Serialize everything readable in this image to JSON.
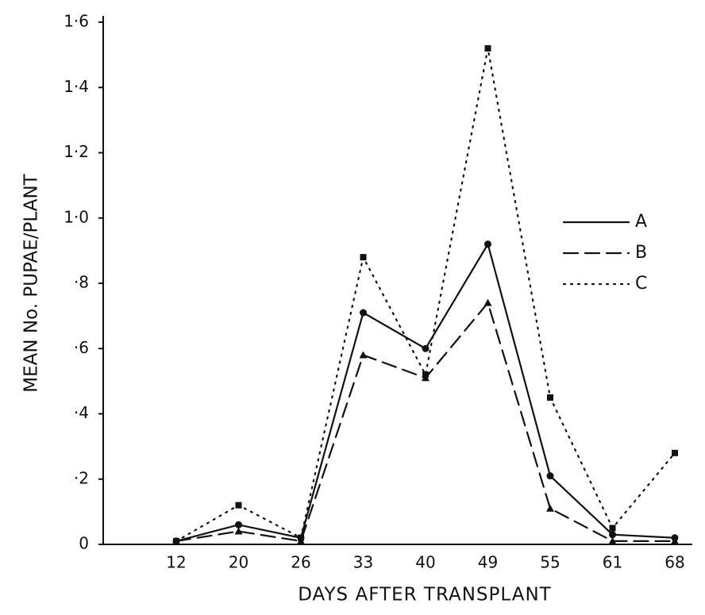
{
  "chart_data": {
    "type": "line",
    "y_label": "MEAN No. PUPAE/PLANT",
    "x_label": "DAYS AFTER TRANSPLANT",
    "categories": [
      "12",
      "20",
      "26",
      "33",
      "40",
      "49",
      "55",
      "61",
      "68"
    ],
    "series": [
      {
        "name": "A",
        "color": "#111111",
        "dash": "solid",
        "marker": "circle",
        "values": [
          0.01,
          0.06,
          0.02,
          0.71,
          0.6,
          0.92,
          0.21,
          0.03,
          0.02
        ]
      },
      {
        "name": "B",
        "color": "#111111",
        "dash": "dashed",
        "marker": "triangle",
        "values": [
          0.01,
          0.04,
          0.01,
          0.58,
          0.51,
          0.74,
          0.11,
          0.01,
          0.01
        ]
      },
      {
        "name": "C",
        "color": "#111111",
        "dash": "dotted",
        "marker": "square",
        "values": [
          0.01,
          0.12,
          0.02,
          0.88,
          0.52,
          1.52,
          0.45,
          0.05,
          0.28
        ]
      }
    ],
    "ylim": [
      0,
      1.6
    ],
    "yticks": [
      0,
      {
        "value": 0.2,
        "label": "·2"
      },
      {
        "value": 0.4,
        "label": "·4"
      },
      {
        "value": 0.6,
        "label": "·6"
      },
      {
        "value": 0.8,
        "label": "·8"
      },
      {
        "value": 1.0,
        "label": "1·0"
      },
      {
        "value": 1.2,
        "label": "1·2"
      },
      {
        "value": 1.4,
        "label": "1·4"
      },
      {
        "value": 1.6,
        "label": "1·6"
      }
    ],
    "grid": false,
    "legend": "right"
  }
}
